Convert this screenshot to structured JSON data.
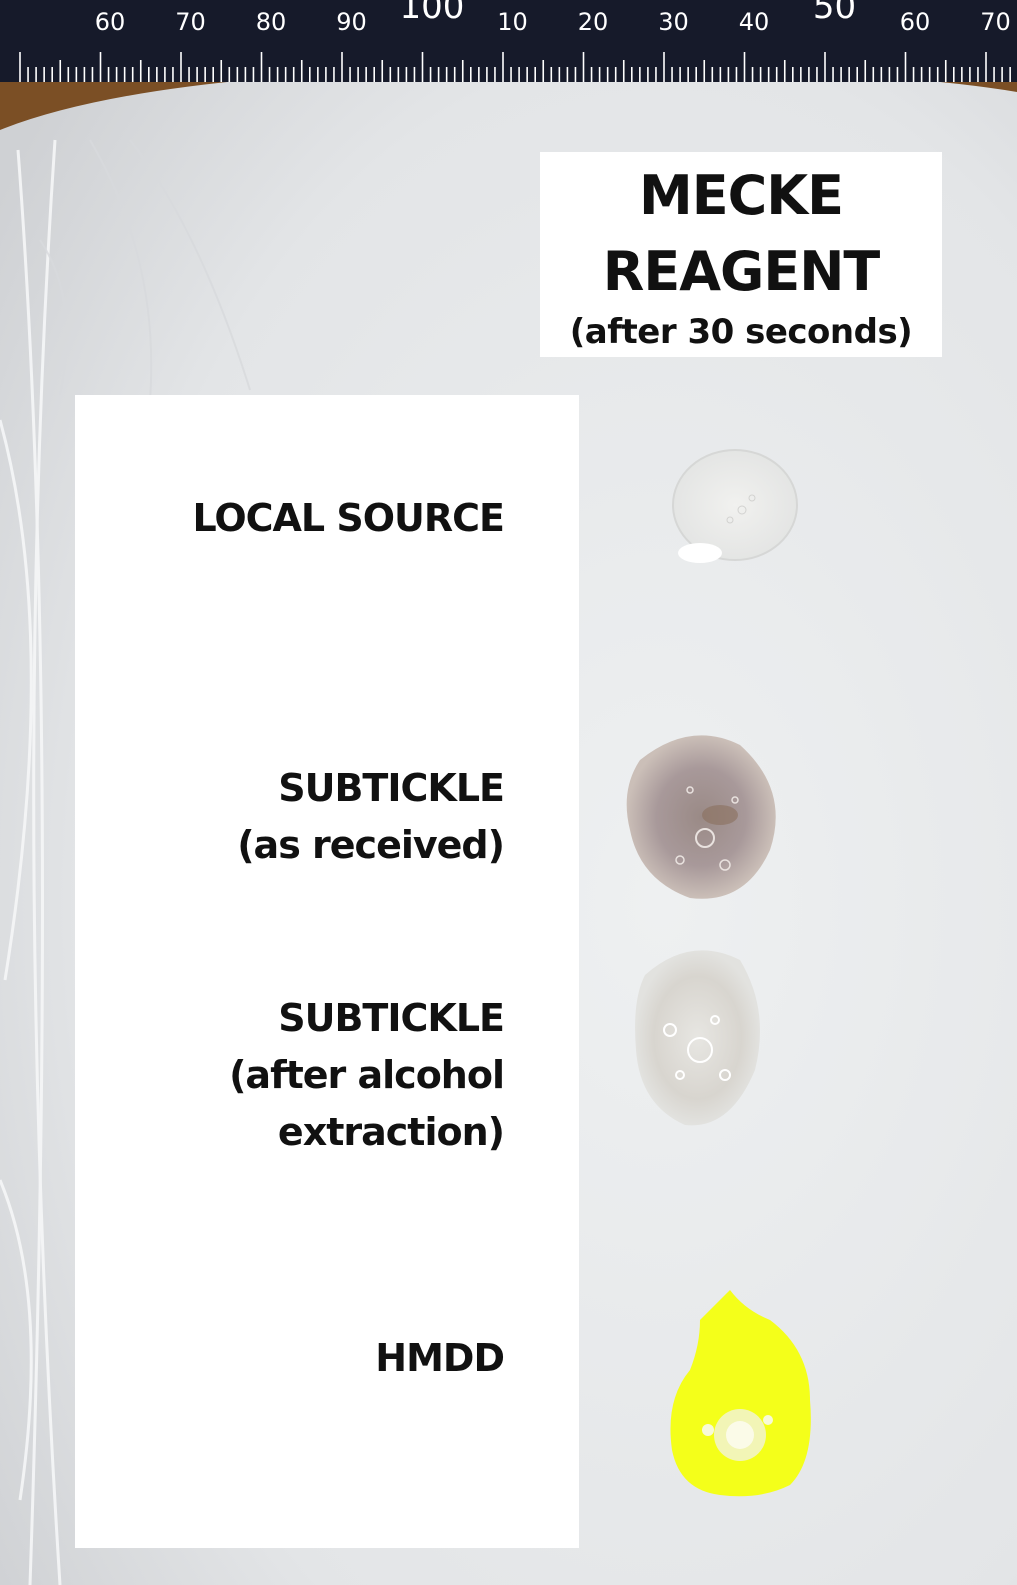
{
  "ruler": {
    "tick_labels": [
      "60",
      "70",
      "80",
      "90",
      "100",
      "10",
      "20",
      "30",
      "40",
      "50",
      "60",
      "70"
    ],
    "colors": {
      "body": "#161a2a",
      "marks": "#ffffff"
    }
  },
  "title": {
    "line1": "MECKE",
    "line2": "REAGENT",
    "line3": "(after 30 seconds)"
  },
  "samples": [
    {
      "lines": [
        "LOCAL SOURCE"
      ],
      "spot": "clear spot with a little white powder"
    },
    {
      "lines": [
        "SUBTICKLE",
        "(as received)"
      ],
      "spot": "grey-brown bubbly spot"
    },
    {
      "lines": [
        "SUBTICKLE",
        "(after alcohol",
        "extraction)"
      ],
      "spot": "faint grey bubbly spot"
    },
    {
      "lines": [
        "HMDD"
      ],
      "spot": "bright yellow spot"
    }
  ],
  "colors": {
    "dish": "#e6e8ea",
    "label_background": "#ffffff",
    "text": "#111111",
    "wood": "#8a5a2a",
    "yellow_spot": "#f4ff1a"
  }
}
